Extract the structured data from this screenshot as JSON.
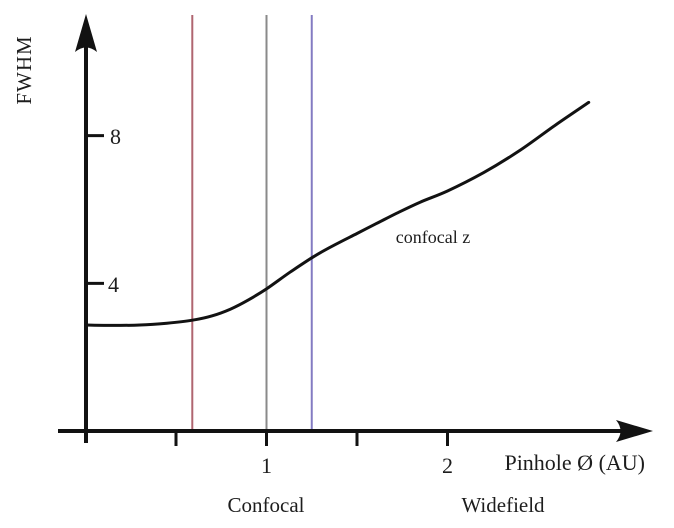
{
  "chart_data": {
    "type": "line",
    "title": "",
    "xlabel": "Pinhole Ø (AU)",
    "ylabel": "FWHM",
    "xlim": [
      0,
      3.1
    ],
    "ylim": [
      0,
      11.3
    ],
    "grid": false,
    "legend": "none (inline curve annotation)",
    "xticks_labeled": [
      1,
      2
    ],
    "xticks_minor": [
      0.5,
      1.5
    ],
    "yticks": [
      4,
      8
    ],
    "axis_color": "#121212",
    "series": [
      {
        "name": "confocal z",
        "color": "#121212",
        "x": [
          0,
          0.15,
          0.3,
          0.45,
          0.59,
          0.7,
          0.8,
          0.9,
          1.0,
          1.13,
          1.26,
          1.38,
          1.5,
          1.6,
          1.72,
          1.85,
          2.0,
          2.2,
          2.4,
          2.6,
          2.78
        ],
        "y": [
          2.87,
          2.86,
          2.87,
          2.92,
          3.0,
          3.12,
          3.3,
          3.55,
          3.85,
          4.3,
          4.72,
          5.05,
          5.35,
          5.6,
          5.9,
          6.2,
          6.5,
          7.0,
          7.6,
          8.3,
          8.9
        ]
      }
    ],
    "vlines": [
      {
        "name": "red-marker-line",
        "x": 0.59,
        "color": "#b06570"
      },
      {
        "name": "gray-marker-line",
        "x": 1.0,
        "color": "#8a8a8a"
      },
      {
        "name": "blue-marker-line",
        "x": 1.25,
        "color": "#837bc2"
      }
    ],
    "annotations": [
      {
        "text": "confocal z",
        "x": 1.92,
        "y": 5.1
      }
    ],
    "region_labels": [
      {
        "text": "Confocal",
        "x": 1.0
      },
      {
        "text": "Widefield",
        "x": 2.3
      }
    ]
  }
}
